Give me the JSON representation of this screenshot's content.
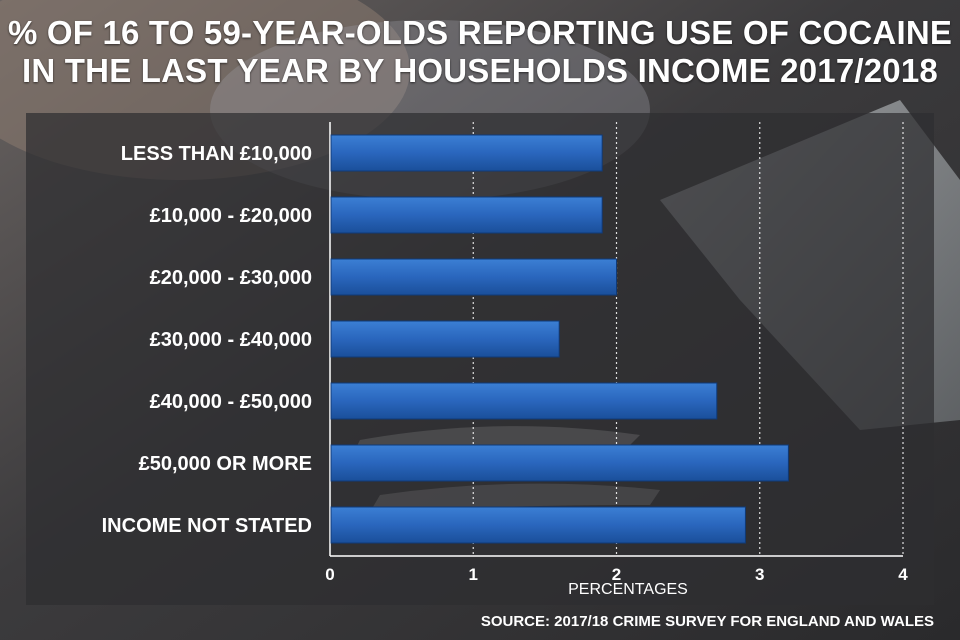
{
  "title_lines": [
    "% OF 16 TO 59-YEAR-OLDS REPORTING USE OF COCAINE",
    "IN THE LAST YEAR BY HOUSEHOLDS INCOME 2017/2018"
  ],
  "source": "SOURCE: 2017/18 CRIME SURVEY FOR ENGLAND AND WALES",
  "colors": {
    "bar_top": "#3b7fd4",
    "bar_bottom": "#1a4f9a",
    "panel": "#2e2e30",
    "text": "#ffffff"
  },
  "chart_data": {
    "type": "bar",
    "orientation": "horizontal",
    "categories": [
      "LESS THAN £10,000",
      "£10,000 - £20,000",
      "£20,000 - £30,000",
      "£30,000 - £40,000",
      "£40,000 - £50,000",
      "£50,000 OR MORE",
      "INCOME NOT STATED"
    ],
    "values": [
      1.9,
      1.9,
      2.0,
      1.6,
      2.7,
      3.2,
      2.9
    ],
    "xlabel": "PERCENTAGES",
    "ylabel": "",
    "xlim": [
      0,
      4
    ],
    "xticks": [
      "0",
      "1",
      "2",
      "3",
      "4"
    ],
    "grid": "vertical dotted",
    "legend": "none"
  }
}
